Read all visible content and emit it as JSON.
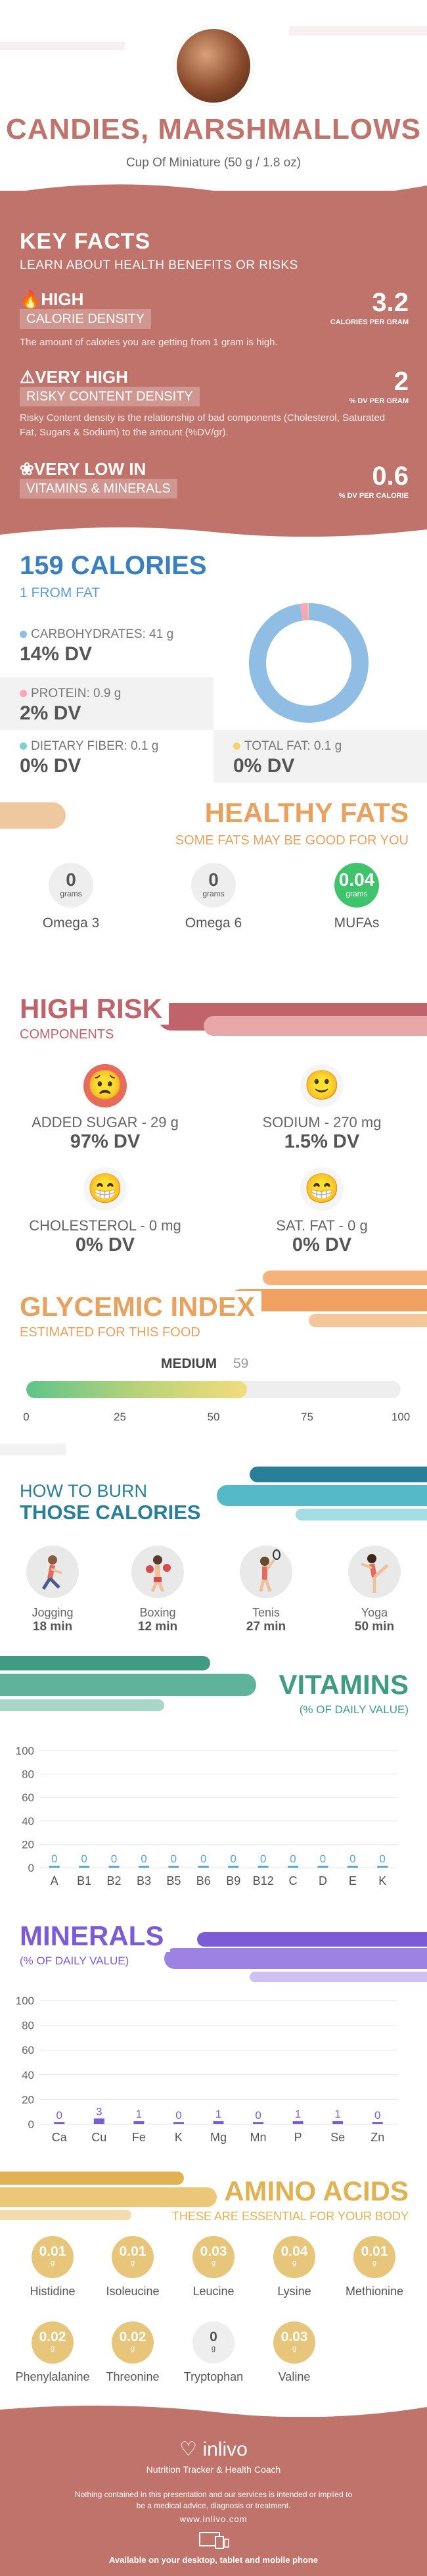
{
  "header": {
    "title": "CANDIES, MARSHMALLOWS",
    "serving": "Cup Of Miniature (50 g / 1.8 oz)"
  },
  "key_facts": {
    "title": "KEY FACTS",
    "subtitle": "LEARN ABOUT HEALTH BENEFITS OR RISKS",
    "items": [
      {
        "level": "HIGH",
        "label": "CALORIE DENSITY",
        "value": "3.2",
        "unit": "CALORIES PER GRAM",
        "desc": "The amount of calories you are getting from 1 gram is high."
      },
      {
        "level": "VERY HIGH",
        "label": "RISKY CONTENT DENSITY",
        "value": "2",
        "unit": "% DV PER GRAM",
        "desc": "Risky Content density is the relationship of bad components (Cholesterol, Saturated Fat, Sugars & Sodium) to the amount (%DV/gr)."
      },
      {
        "level": "VERY LOW  IN",
        "label": "VITAMINS & MINERALS",
        "value": "0.6",
        "unit": "% DV PER CALORIE",
        "desc": ""
      }
    ]
  },
  "calories": {
    "title": "159 CALORIES",
    "subtitle": "1 FROM FAT",
    "nutrients": [
      {
        "label": "CARBOHYDRATES: 41 g",
        "dv": "14% DV",
        "color": "#8fbde4"
      },
      {
        "label": "PROTEIN: 0.9 g",
        "dv": "2% DV",
        "color": "#f4a7b9"
      },
      {
        "label": "DIETARY FIBER: 0.1 g",
        "dv": "0% DV",
        "color": "#7fcfd8"
      },
      {
        "label": "TOTAL FAT: 0.1 g",
        "dv": "0% DV",
        "color": "#f6d36b"
      }
    ],
    "donut": [
      {
        "name": "carbohydrates",
        "value": 41,
        "color": "#8fbde4"
      },
      {
        "name": "protein",
        "value": 0.9,
        "color": "#f4a7b9"
      },
      {
        "name": "fat",
        "value": 0.1,
        "color": "#f6d36b"
      }
    ]
  },
  "healthy_fats": {
    "title": "HEALTHY FATS",
    "subtitle": "SOME FATS MAY BE GOOD FOR YOU",
    "items": [
      {
        "name": "Omega 3",
        "value": "0",
        "unit": "grams"
      },
      {
        "name": "Omega 6",
        "value": "0",
        "unit": "grams"
      },
      {
        "name": "MUFAs",
        "value": "0.04",
        "unit": "grams"
      }
    ],
    "highlight_color": "#3fc46b"
  },
  "high_risk": {
    "title": "HIGH RISK",
    "subtitle": "COMPONENTS",
    "items": [
      {
        "label": "ADDED SUGAR - 29 g",
        "dv": "97% DV",
        "face": "sad"
      },
      {
        "label": "SODIUM - 270 mg",
        "dv": "1.5% DV",
        "face": "happy"
      },
      {
        "label": "CHOLESTEROL - 0 mg",
        "dv": "0% DV",
        "face": "grin"
      },
      {
        "label": "SAT. FAT - 0 g",
        "dv": "0% DV",
        "face": "grin"
      }
    ]
  },
  "glycemic": {
    "title": "GLYCEMIC INDEX",
    "subtitle": "ESTIMATED FOR THIS FOOD",
    "level": "MEDIUM",
    "value": 59,
    "value_label": "59",
    "ticks": [
      "0",
      "25",
      "50",
      "75",
      "100"
    ],
    "max": 100
  },
  "burn": {
    "title_1": "HOW TO BURN",
    "title_2": "THOSE CALORIES",
    "activities": [
      {
        "name": "Jogging",
        "time": "18 min",
        "icon": "jogging-icon"
      },
      {
        "name": "Boxing",
        "time": "12 min",
        "icon": "boxing-icon"
      },
      {
        "name": "Tenis",
        "time": "27 min",
        "icon": "tennis-icon"
      },
      {
        "name": "Yoga",
        "time": "50 min",
        "icon": "yoga-icon"
      }
    ]
  },
  "vitamins": {
    "title": "VITAMINS",
    "subtitle": "(% OF DAILY VALUE)",
    "chart_data": {
      "type": "bar",
      "categories": [
        "A",
        "B1",
        "B2",
        "B3",
        "B5",
        "B6",
        "B9",
        "B12",
        "C",
        "D",
        "E",
        "K"
      ],
      "values": [
        0,
        0,
        0,
        0,
        0,
        0,
        0,
        0,
        0,
        0,
        0,
        0
      ],
      "labels": [
        "0",
        "0",
        "0",
        "0",
        "0",
        "0",
        "0",
        "0",
        "0",
        "0",
        "0",
        "0"
      ],
      "yticks": [
        "100",
        "80",
        "60",
        "40",
        "20",
        "0"
      ],
      "ylim": [
        0,
        100
      ],
      "color": "#5aa7d6"
    }
  },
  "minerals": {
    "title": "MINERALS",
    "subtitle": "(% OF DAILY VALUE)",
    "chart_data": {
      "type": "bar",
      "categories": [
        "Ca",
        "Cu",
        "Fe",
        "K",
        "Mg",
        "Mn",
        "P",
        "Se",
        "Zn"
      ],
      "values": [
        0,
        3,
        1,
        0,
        1,
        0,
        1,
        1,
        0
      ],
      "labels": [
        "0",
        "3",
        "1",
        "0",
        "1",
        "0",
        "1",
        "1",
        "0"
      ],
      "yticks": [
        "100",
        "80",
        "60",
        "40",
        "20",
        "0"
      ],
      "ylim": [
        0,
        100
      ],
      "color": "#7b5bd6"
    }
  },
  "amino": {
    "title": "AMINO ACIDS",
    "subtitle": "THESE ARE ESSENTIAL FOR YOUR BODY",
    "items": [
      {
        "name": "Histidine",
        "value": "0.01",
        "unit": "g"
      },
      {
        "name": "Isoleucine",
        "value": "0.01",
        "unit": "g"
      },
      {
        "name": "Leucine",
        "value": "0.03",
        "unit": "g"
      },
      {
        "name": "Lysine",
        "value": "0.04",
        "unit": "g"
      },
      {
        "name": "Methionine",
        "value": "0.01",
        "unit": "g"
      },
      {
        "name": "Phenylalanine",
        "value": "0.02",
        "unit": "g"
      },
      {
        "name": "Threonine",
        "value": "0.02",
        "unit": "g"
      },
      {
        "name": "Tryptophan",
        "value": "0",
        "unit": "g"
      },
      {
        "name": "Valine",
        "value": "0.03",
        "unit": "g"
      }
    ]
  },
  "footer": {
    "brand": "inlivo",
    "tagline": "Nutrition Tracker & Health Coach",
    "disclaimer": "Nothing contained in this presentation and our services is intended or implied to be a medical advice, diagnosis or treatment.",
    "site": "www.inlivo.com",
    "available": "Available on your desktop, tablet and mobile phone"
  }
}
